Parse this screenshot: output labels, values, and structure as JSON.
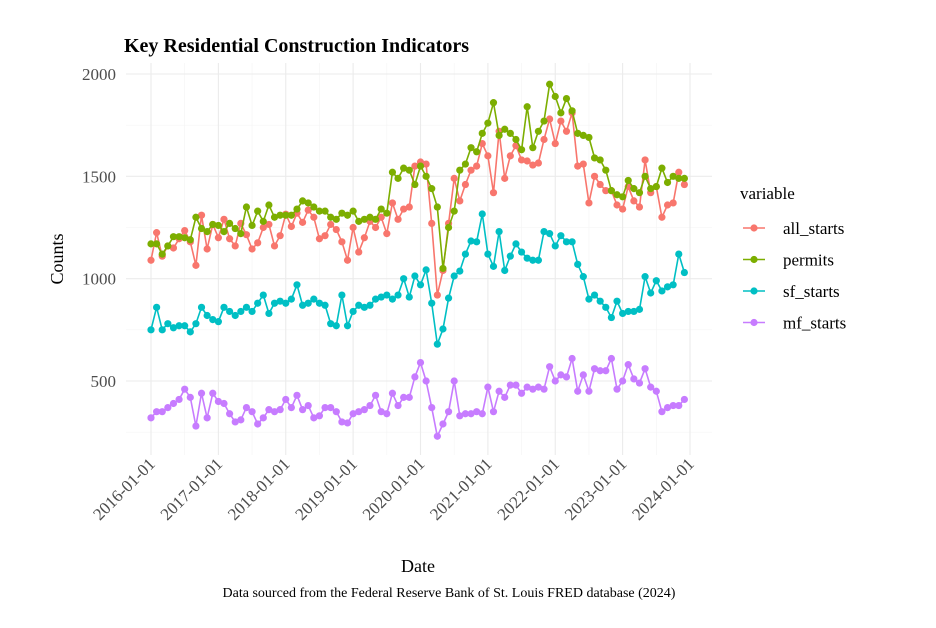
{
  "chart_data": {
    "type": "line",
    "title": "Key Residential Construction Indicators",
    "xlabel": "Date",
    "ylabel": "Counts",
    "caption": "Data sourced from the Federal Reserve Bank of St. Louis FRED database (2024)",
    "x_start": "2016-01",
    "x_frequency": "monthly",
    "x_ticks": [
      "2016-01-01",
      "2017-01-01",
      "2018-01-01",
      "2019-01-01",
      "2020-01-01",
      "2021-01-01",
      "2022-01-01",
      "2023-01-01",
      "2024-01-01"
    ],
    "y_ticks": [
      500,
      1000,
      1500,
      2000
    ],
    "ylim": [
      130,
      2050
    ],
    "grid": true,
    "legend": {
      "title": "variable",
      "placement": "right"
    },
    "series": [
      {
        "name": "all_starts",
        "color": "#F8766D",
        "values": [
          1090,
          1225,
          1110,
          1160,
          1150,
          1195,
          1235,
          1180,
          1065,
          1310,
          1145,
          1265,
          1200,
          1290,
          1195,
          1160,
          1270,
          1215,
          1145,
          1175,
          1250,
          1265,
          1160,
          1210,
          1315,
          1255,
          1320,
          1275,
          1335,
          1300,
          1195,
          1210,
          1265,
          1240,
          1180,
          1090,
          1250,
          1130,
          1200,
          1280,
          1250,
          1300,
          1220,
          1370,
          1290,
          1340,
          1350,
          1550,
          1570,
          1560,
          1270,
          920,
          1040,
          1270,
          1490,
          1380,
          1460,
          1530,
          1550,
          1660,
          1600,
          1420,
          1720,
          1490,
          1600,
          1650,
          1580,
          1575,
          1555,
          1565,
          1680,
          1780,
          1660,
          1770,
          1720,
          1810,
          1550,
          1560,
          1370,
          1500,
          1460,
          1430,
          1430,
          1360,
          1340,
          1450,
          1380,
          1350,
          1580,
          1420,
          1450,
          1300,
          1360,
          1370,
          1520,
          1460
        ]
      },
      {
        "name": "permits",
        "color": "#7CAE00",
        "values": [
          1170,
          1170,
          1120,
          1160,
          1205,
          1205,
          1200,
          1190,
          1300,
          1245,
          1230,
          1265,
          1260,
          1230,
          1270,
          1245,
          1220,
          1350,
          1260,
          1330,
          1280,
          1360,
          1300,
          1310,
          1310,
          1310,
          1340,
          1380,
          1370,
          1350,
          1330,
          1330,
          1300,
          1290,
          1320,
          1310,
          1330,
          1280,
          1290,
          1300,
          1290,
          1340,
          1320,
          1520,
          1490,
          1540,
          1530,
          1460,
          1550,
          1500,
          1440,
          1350,
          1050,
          1250,
          1330,
          1530,
          1560,
          1640,
          1620,
          1710,
          1760,
          1860,
          1700,
          1730,
          1710,
          1680,
          1630,
          1840,
          1640,
          1720,
          1770,
          1950,
          1890,
          1810,
          1880,
          1820,
          1710,
          1700,
          1690,
          1590,
          1580,
          1530,
          1430,
          1410,
          1400,
          1480,
          1440,
          1420,
          1500,
          1440,
          1450,
          1540,
          1470,
          1500,
          1490,
          1490
        ]
      },
      {
        "name": "sf_starts",
        "color": "#00BFC4",
        "values": [
          750,
          860,
          750,
          780,
          760,
          770,
          770,
          740,
          780,
          860,
          820,
          800,
          790,
          860,
          840,
          820,
          840,
          860,
          840,
          880,
          920,
          830,
          880,
          890,
          880,
          900,
          970,
          870,
          880,
          900,
          880,
          870,
          780,
          770,
          920,
          770,
          840,
          870,
          860,
          870,
          900,
          910,
          920,
          900,
          920,
          1000,
          910,
          1013,
          970,
          1043,
          880,
          680,
          754,
          905,
          1013,
          1037,
          1120,
          1184,
          1180,
          1316,
          1120,
          1060,
          1230,
          1040,
          1110,
          1170,
          1130,
          1100,
          1090,
          1090,
          1230,
          1220,
          1160,
          1210,
          1180,
          1180,
          1070,
          1010,
          900,
          920,
          890,
          860,
          810,
          890,
          830,
          840,
          840,
          850,
          1010,
          930,
          990,
          940,
          960,
          970,
          1120,
          1030
        ]
      },
      {
        "name": "mf_starts",
        "color": "#C77CFF",
        "values": [
          320,
          350,
          350,
          370,
          390,
          410,
          460,
          420,
          280,
          440,
          320,
          440,
          400,
          390,
          340,
          300,
          310,
          370,
          350,
          290,
          320,
          360,
          350,
          360,
          410,
          370,
          430,
          360,
          380,
          320,
          330,
          370,
          370,
          350,
          300,
          295,
          340,
          350,
          360,
          380,
          430,
          350,
          340,
          440,
          380,
          420,
          420,
          520,
          590,
          500,
          370,
          230,
          290,
          350,
          500,
          330,
          340,
          340,
          350,
          340,
          470,
          350,
          450,
          420,
          480,
          480,
          440,
          470,
          460,
          470,
          460,
          570,
          500,
          530,
          520,
          610,
          450,
          530,
          450,
          560,
          550,
          550,
          610,
          460,
          500,
          580,
          510,
          490,
          560,
          470,
          450,
          350,
          370,
          380,
          380,
          410
        ]
      }
    ]
  }
}
